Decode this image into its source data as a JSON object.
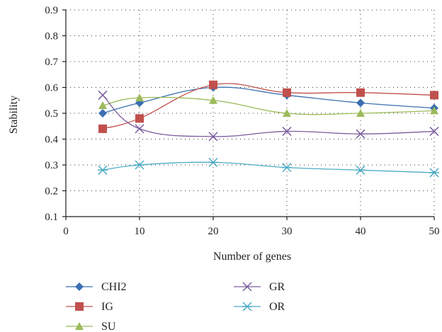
{
  "chart_data": {
    "type": "line",
    "xlabel": "Number of genes",
    "ylabel": "Stability",
    "xlim": [
      0,
      50
    ],
    "ylim": [
      0.1,
      0.9
    ],
    "x_ticks": [
      "0",
      "10",
      "20",
      "30",
      "40",
      "50"
    ],
    "y_ticks": [
      "0.1",
      "0.2",
      "0.3",
      "0.4",
      "0.5",
      "0.6",
      "0.7",
      "0.8",
      "0.9"
    ],
    "grid": "dotted, both axes",
    "legend_position": "bottom",
    "x": [
      5,
      10,
      20,
      30,
      40,
      50
    ],
    "series": [
      {
        "name": "CHI2",
        "color": "#3a70b0",
        "marker": "diamond",
        "values": [
          0.5,
          0.54,
          0.6,
          0.57,
          0.54,
          0.52
        ]
      },
      {
        "name": "IG",
        "color": "#c0504d",
        "marker": "square",
        "values": [
          0.44,
          0.48,
          0.61,
          0.58,
          0.58,
          0.57
        ]
      },
      {
        "name": "SU",
        "color": "#9bbb59",
        "marker": "triangle",
        "values": [
          0.53,
          0.56,
          0.55,
          0.5,
          0.5,
          0.51
        ]
      },
      {
        "name": "GR",
        "color": "#7a5c9e",
        "marker": "x",
        "values": [
          0.57,
          0.44,
          0.41,
          0.43,
          0.42,
          0.43
        ]
      },
      {
        "name": "OR",
        "color": "#4bacc6",
        "marker": "star",
        "values": [
          0.28,
          0.3,
          0.31,
          0.29,
          0.28,
          0.27
        ]
      }
    ]
  }
}
